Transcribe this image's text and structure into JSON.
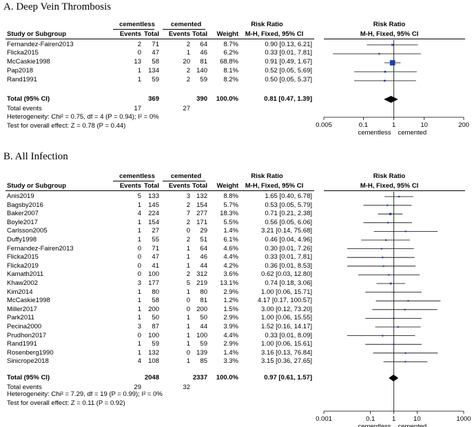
{
  "colors": {
    "study_point": "#1f3fa8",
    "axis": "#000000",
    "ci_line": "#000000",
    "diamond": "#000000"
  },
  "columns": {
    "study": "Study or Subgroup",
    "events": "Events",
    "total": "Total",
    "weight": "Weight",
    "rr": "M-H, Fixed, 95% CI",
    "risk_ratio": "Risk Ratio"
  },
  "panelA": {
    "title": "A.  Deep Vein Thrombosis",
    "group1": "cementless",
    "group2": "cemented",
    "studies": [
      {
        "name": "Fernandez-Fairen2013",
        "e1": "2",
        "n1": "71",
        "e2": "2",
        "n2": "64",
        "w": "8.7%",
        "ci": "0.90 [0.13, 6.21]"
      },
      {
        "name": "Flicka2015",
        "e1": "0",
        "n1": "47",
        "e2": "1",
        "n2": "46",
        "w": "6.2%",
        "ci": "0.33 [0.01, 7.81]"
      },
      {
        "name": "McCaskie1998",
        "e1": "13",
        "n1": "58",
        "e2": "20",
        "n2": "81",
        "w": "68.8%",
        "ci": "0.91 [0.49, 1.67]"
      },
      {
        "name": "Pap2018",
        "e1": "1",
        "n1": "134",
        "e2": "2",
        "n2": "140",
        "w": "8.1%",
        "ci": "0.52 [0.05, 5.69]"
      },
      {
        "name": "Rand1991",
        "e1": "1",
        "n1": "59",
        "e2": "2",
        "n2": "59",
        "w": "8.2%",
        "ci": "0.50 [0.05, 5.37]"
      }
    ],
    "total": {
      "label": "Total (95% CI)",
      "n1": "369",
      "n2": "390",
      "w": "100.0%",
      "ci": "0.81 [0.47, 1.39]"
    },
    "total_events": {
      "label": "Total events",
      "e1": "17",
      "e2": "27"
    },
    "heterogeneity": "Heterogeneity: Chi² = 0.75, df = 4 (P = 0.94); I² = 0%",
    "overall": "Test for overall effect: Z = 0.78 (P = 0.44)",
    "axis_ticks": [
      "0.005",
      "0.1",
      "1",
      "10",
      "200"
    ],
    "favours_left": "cementless",
    "favours_right": "cemented"
  },
  "panelB": {
    "title": "B.  All Infection",
    "group1": "cementless",
    "group2": "cemented",
    "studies": [
      {
        "name": "Anis2019",
        "e1": "5",
        "n1": "133",
        "e2": "3",
        "n2": "132",
        "w": "8.8%",
        "ci": "1.65 [0.40, 6.78]"
      },
      {
        "name": "Bagsby2016",
        "e1": "1",
        "n1": "145",
        "e2": "2",
        "n2": "154",
        "w": "5.7%",
        "ci": "0.53 [0.05, 5.79]"
      },
      {
        "name": "Baker2007",
        "e1": "4",
        "n1": "224",
        "e2": "7",
        "n2": "277",
        "w": "18.3%",
        "ci": "0.71 [0.21, 2.38]"
      },
      {
        "name": "Boyle2017",
        "e1": "1",
        "n1": "154",
        "e2": "2",
        "n2": "171",
        "w": "5.5%",
        "ci": "0.56 [0.05, 6.06]"
      },
      {
        "name": "Carlsson2005",
        "e1": "1",
        "n1": "27",
        "e2": "0",
        "n2": "29",
        "w": "1.4%",
        "ci": "3.21 [0.14, 75.68]"
      },
      {
        "name": "Duffy1998",
        "e1": "1",
        "n1": "55",
        "e2": "2",
        "n2": "51",
        "w": "6.1%",
        "ci": "0.46 [0.04, 4.96]"
      },
      {
        "name": "Fernandez-Fairen2013",
        "e1": "0",
        "n1": "71",
        "e2": "1",
        "n2": "64",
        "w": "4.6%",
        "ci": "0.30 [0.01, 7.26]"
      },
      {
        "name": "Flicka2015",
        "e1": "0",
        "n1": "47",
        "e2": "1",
        "n2": "46",
        "w": "4.4%",
        "ci": "0.33 [0.01, 7.81]"
      },
      {
        "name": "Flicka2019",
        "e1": "0",
        "n1": "41",
        "e2": "1",
        "n2": "44",
        "w": "4.2%",
        "ci": "0.36 [0.01, 8.53]"
      },
      {
        "name": "Kamath2011",
        "e1": "0",
        "n1": "100",
        "e2": "2",
        "n2": "312",
        "w": "3.6%",
        "ci": "0.62 [0.03, 12.80]"
      },
      {
        "name": "Khaw2002",
        "e1": "3",
        "n1": "177",
        "e2": "5",
        "n2": "219",
        "w": "13.1%",
        "ci": "0.74 [0.18, 3.06]"
      },
      {
        "name": "Kim2014",
        "e1": "1",
        "n1": "80",
        "e2": "1",
        "n2": "80",
        "w": "2.9%",
        "ci": "1.00 [0.06, 15.71]"
      },
      {
        "name": "McCaskie1998",
        "e1": "1",
        "n1": "58",
        "e2": "0",
        "n2": "81",
        "w": "1.2%",
        "ci": "4.17 [0.17, 100.57]"
      },
      {
        "name": "Miller2017",
        "e1": "1",
        "n1": "200",
        "e2": "0",
        "n2": "200",
        "w": "1.5%",
        "ci": "3.00 [0.12, 73.20]"
      },
      {
        "name": "Park2011",
        "e1": "1",
        "n1": "50",
        "e2": "1",
        "n2": "50",
        "w": "2.9%",
        "ci": "1.00 [0.06, 15.55]"
      },
      {
        "name": "Pecina2000",
        "e1": "3",
        "n1": "87",
        "e2": "1",
        "n2": "44",
        "w": "3.9%",
        "ci": "1.52 [0.16, 14.17]"
      },
      {
        "name": "Prudhon2017",
        "e1": "0",
        "n1": "100",
        "e2": "1",
        "n2": "100",
        "w": "4.4%",
        "ci": "0.33 [0.01, 8.09]"
      },
      {
        "name": "Rand1991",
        "e1": "1",
        "n1": "59",
        "e2": "1",
        "n2": "59",
        "w": "2.9%",
        "ci": "1.00 [0.06, 15.61]"
      },
      {
        "name": "Rosenberg1990",
        "e1": "1",
        "n1": "132",
        "e2": "0",
        "n2": "139",
        "w": "1.4%",
        "ci": "3.16 [0.13, 76.84]"
      },
      {
        "name": "Sinicrope2018",
        "e1": "4",
        "n1": "108",
        "e2": "1",
        "n2": "85",
        "w": "3.3%",
        "ci": "3.15 [0.36, 27.65]"
      }
    ],
    "total": {
      "label": "Total (95% CI)",
      "n1": "2048",
      "n2": "2337",
      "w": "100.0%",
      "ci": "0.97 [0.61, 1.57]"
    },
    "total_events": {
      "label": "Total events",
      "e1": "29",
      "e2": "32"
    },
    "heterogeneity": "Heterogeneity: Chi² = 7.29, df = 19 (P = 0.99); I² = 0%",
    "overall": "Test for overall effect: Z = 0.11 (P = 0.92)",
    "axis_ticks": [
      "0.001",
      "0.1",
      "1",
      "10",
      "1000"
    ],
    "favours_left": "cementless",
    "favours_right": "cemented"
  },
  "chart_data": [
    {
      "type": "forest",
      "title": "A.  Deep Vein Thrombosis",
      "scale": "log",
      "xlim": [
        0.005,
        200
      ],
      "xticks": [
        0.005,
        0.1,
        1,
        10,
        200
      ],
      "xlabel_left": "cementless",
      "xlabel_right": "cemented",
      "studies": [
        {
          "name": "Fernandez-Fairen2013",
          "rr": 0.9,
          "lo": 0.13,
          "hi": 6.21,
          "weight": 8.7
        },
        {
          "name": "Flicka2015",
          "rr": 0.33,
          "lo": 0.01,
          "hi": 7.81,
          "weight": 6.2
        },
        {
          "name": "McCaskie1998",
          "rr": 0.91,
          "lo": 0.49,
          "hi": 1.67,
          "weight": 68.8
        },
        {
          "name": "Pap2018",
          "rr": 0.52,
          "lo": 0.05,
          "hi": 5.69,
          "weight": 8.1
        },
        {
          "name": "Rand1991",
          "rr": 0.5,
          "lo": 0.05,
          "hi": 5.37,
          "weight": 8.2
        }
      ],
      "pooled": {
        "rr": 0.81,
        "lo": 0.47,
        "hi": 1.39
      }
    },
    {
      "type": "forest",
      "title": "B.  All Infection",
      "scale": "log",
      "xlim": [
        0.001,
        1000
      ],
      "xticks": [
        0.001,
        0.1,
        1,
        10,
        1000
      ],
      "xlabel_left": "cementless",
      "xlabel_right": "cemented",
      "studies": [
        {
          "name": "Anis2019",
          "rr": 1.65,
          "lo": 0.4,
          "hi": 6.78,
          "weight": 8.8
        },
        {
          "name": "Bagsby2016",
          "rr": 0.53,
          "lo": 0.05,
          "hi": 5.79,
          "weight": 5.7
        },
        {
          "name": "Baker2007",
          "rr": 0.71,
          "lo": 0.21,
          "hi": 2.38,
          "weight": 18.3
        },
        {
          "name": "Boyle2017",
          "rr": 0.56,
          "lo": 0.05,
          "hi": 6.06,
          "weight": 5.5
        },
        {
          "name": "Carlsson2005",
          "rr": 3.21,
          "lo": 0.14,
          "hi": 75.68,
          "weight": 1.4
        },
        {
          "name": "Duffy1998",
          "rr": 0.46,
          "lo": 0.04,
          "hi": 4.96,
          "weight": 6.1
        },
        {
          "name": "Fernandez-Fairen2013",
          "rr": 0.3,
          "lo": 0.01,
          "hi": 7.26,
          "weight": 4.6
        },
        {
          "name": "Flicka2015",
          "rr": 0.33,
          "lo": 0.01,
          "hi": 7.81,
          "weight": 4.4
        },
        {
          "name": "Flicka2019",
          "rr": 0.36,
          "lo": 0.01,
          "hi": 8.53,
          "weight": 4.2
        },
        {
          "name": "Kamath2011",
          "rr": 0.62,
          "lo": 0.03,
          "hi": 12.8,
          "weight": 3.6
        },
        {
          "name": "Khaw2002",
          "rr": 0.74,
          "lo": 0.18,
          "hi": 3.06,
          "weight": 13.1
        },
        {
          "name": "Kim2014",
          "rr": 1.0,
          "lo": 0.06,
          "hi": 15.71,
          "weight": 2.9
        },
        {
          "name": "McCaskie1998",
          "rr": 4.17,
          "lo": 0.17,
          "hi": 100.57,
          "weight": 1.2
        },
        {
          "name": "Miller2017",
          "rr": 3.0,
          "lo": 0.12,
          "hi": 73.2,
          "weight": 1.5
        },
        {
          "name": "Park2011",
          "rr": 1.0,
          "lo": 0.06,
          "hi": 15.55,
          "weight": 2.9
        },
        {
          "name": "Pecina2000",
          "rr": 1.52,
          "lo": 0.16,
          "hi": 14.17,
          "weight": 3.9
        },
        {
          "name": "Prudhon2017",
          "rr": 0.33,
          "lo": 0.01,
          "hi": 8.09,
          "weight": 4.4
        },
        {
          "name": "Rand1991",
          "rr": 1.0,
          "lo": 0.06,
          "hi": 15.61,
          "weight": 2.9
        },
        {
          "name": "Rosenberg1990",
          "rr": 3.16,
          "lo": 0.13,
          "hi": 76.84,
          "weight": 1.4
        },
        {
          "name": "Sinicrope2018",
          "rr": 3.15,
          "lo": 0.36,
          "hi": 27.65,
          "weight": 3.3
        }
      ],
      "pooled": {
        "rr": 0.97,
        "lo": 0.61,
        "hi": 1.57
      }
    }
  ]
}
